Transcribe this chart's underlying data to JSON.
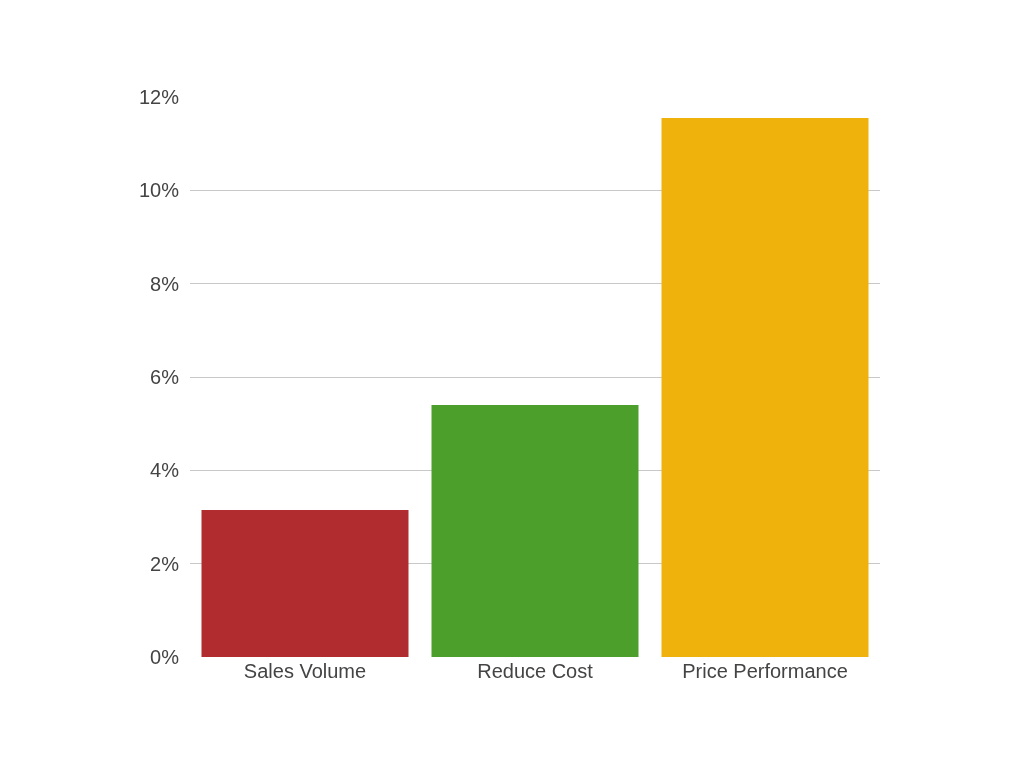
{
  "chart_data": {
    "type": "bar",
    "categories": [
      "Sales Volume",
      "Reduce Cost",
      "Price Performance"
    ],
    "values": [
      3.15,
      5.4,
      11.55
    ],
    "colors": [
      "#b02c2f",
      "#4c9f2a",
      "#efb20c"
    ],
    "ylim": [
      0,
      12
    ],
    "yticks": [
      {
        "value": 0,
        "label": "0%"
      },
      {
        "value": 2,
        "label": "2%"
      },
      {
        "value": 4,
        "label": "4%"
      },
      {
        "value": 6,
        "label": "6%"
      },
      {
        "value": 8,
        "label": "8%"
      },
      {
        "value": 10,
        "label": "10%"
      },
      {
        "value": 12,
        "label": "12%"
      }
    ],
    "grid": "y"
  }
}
